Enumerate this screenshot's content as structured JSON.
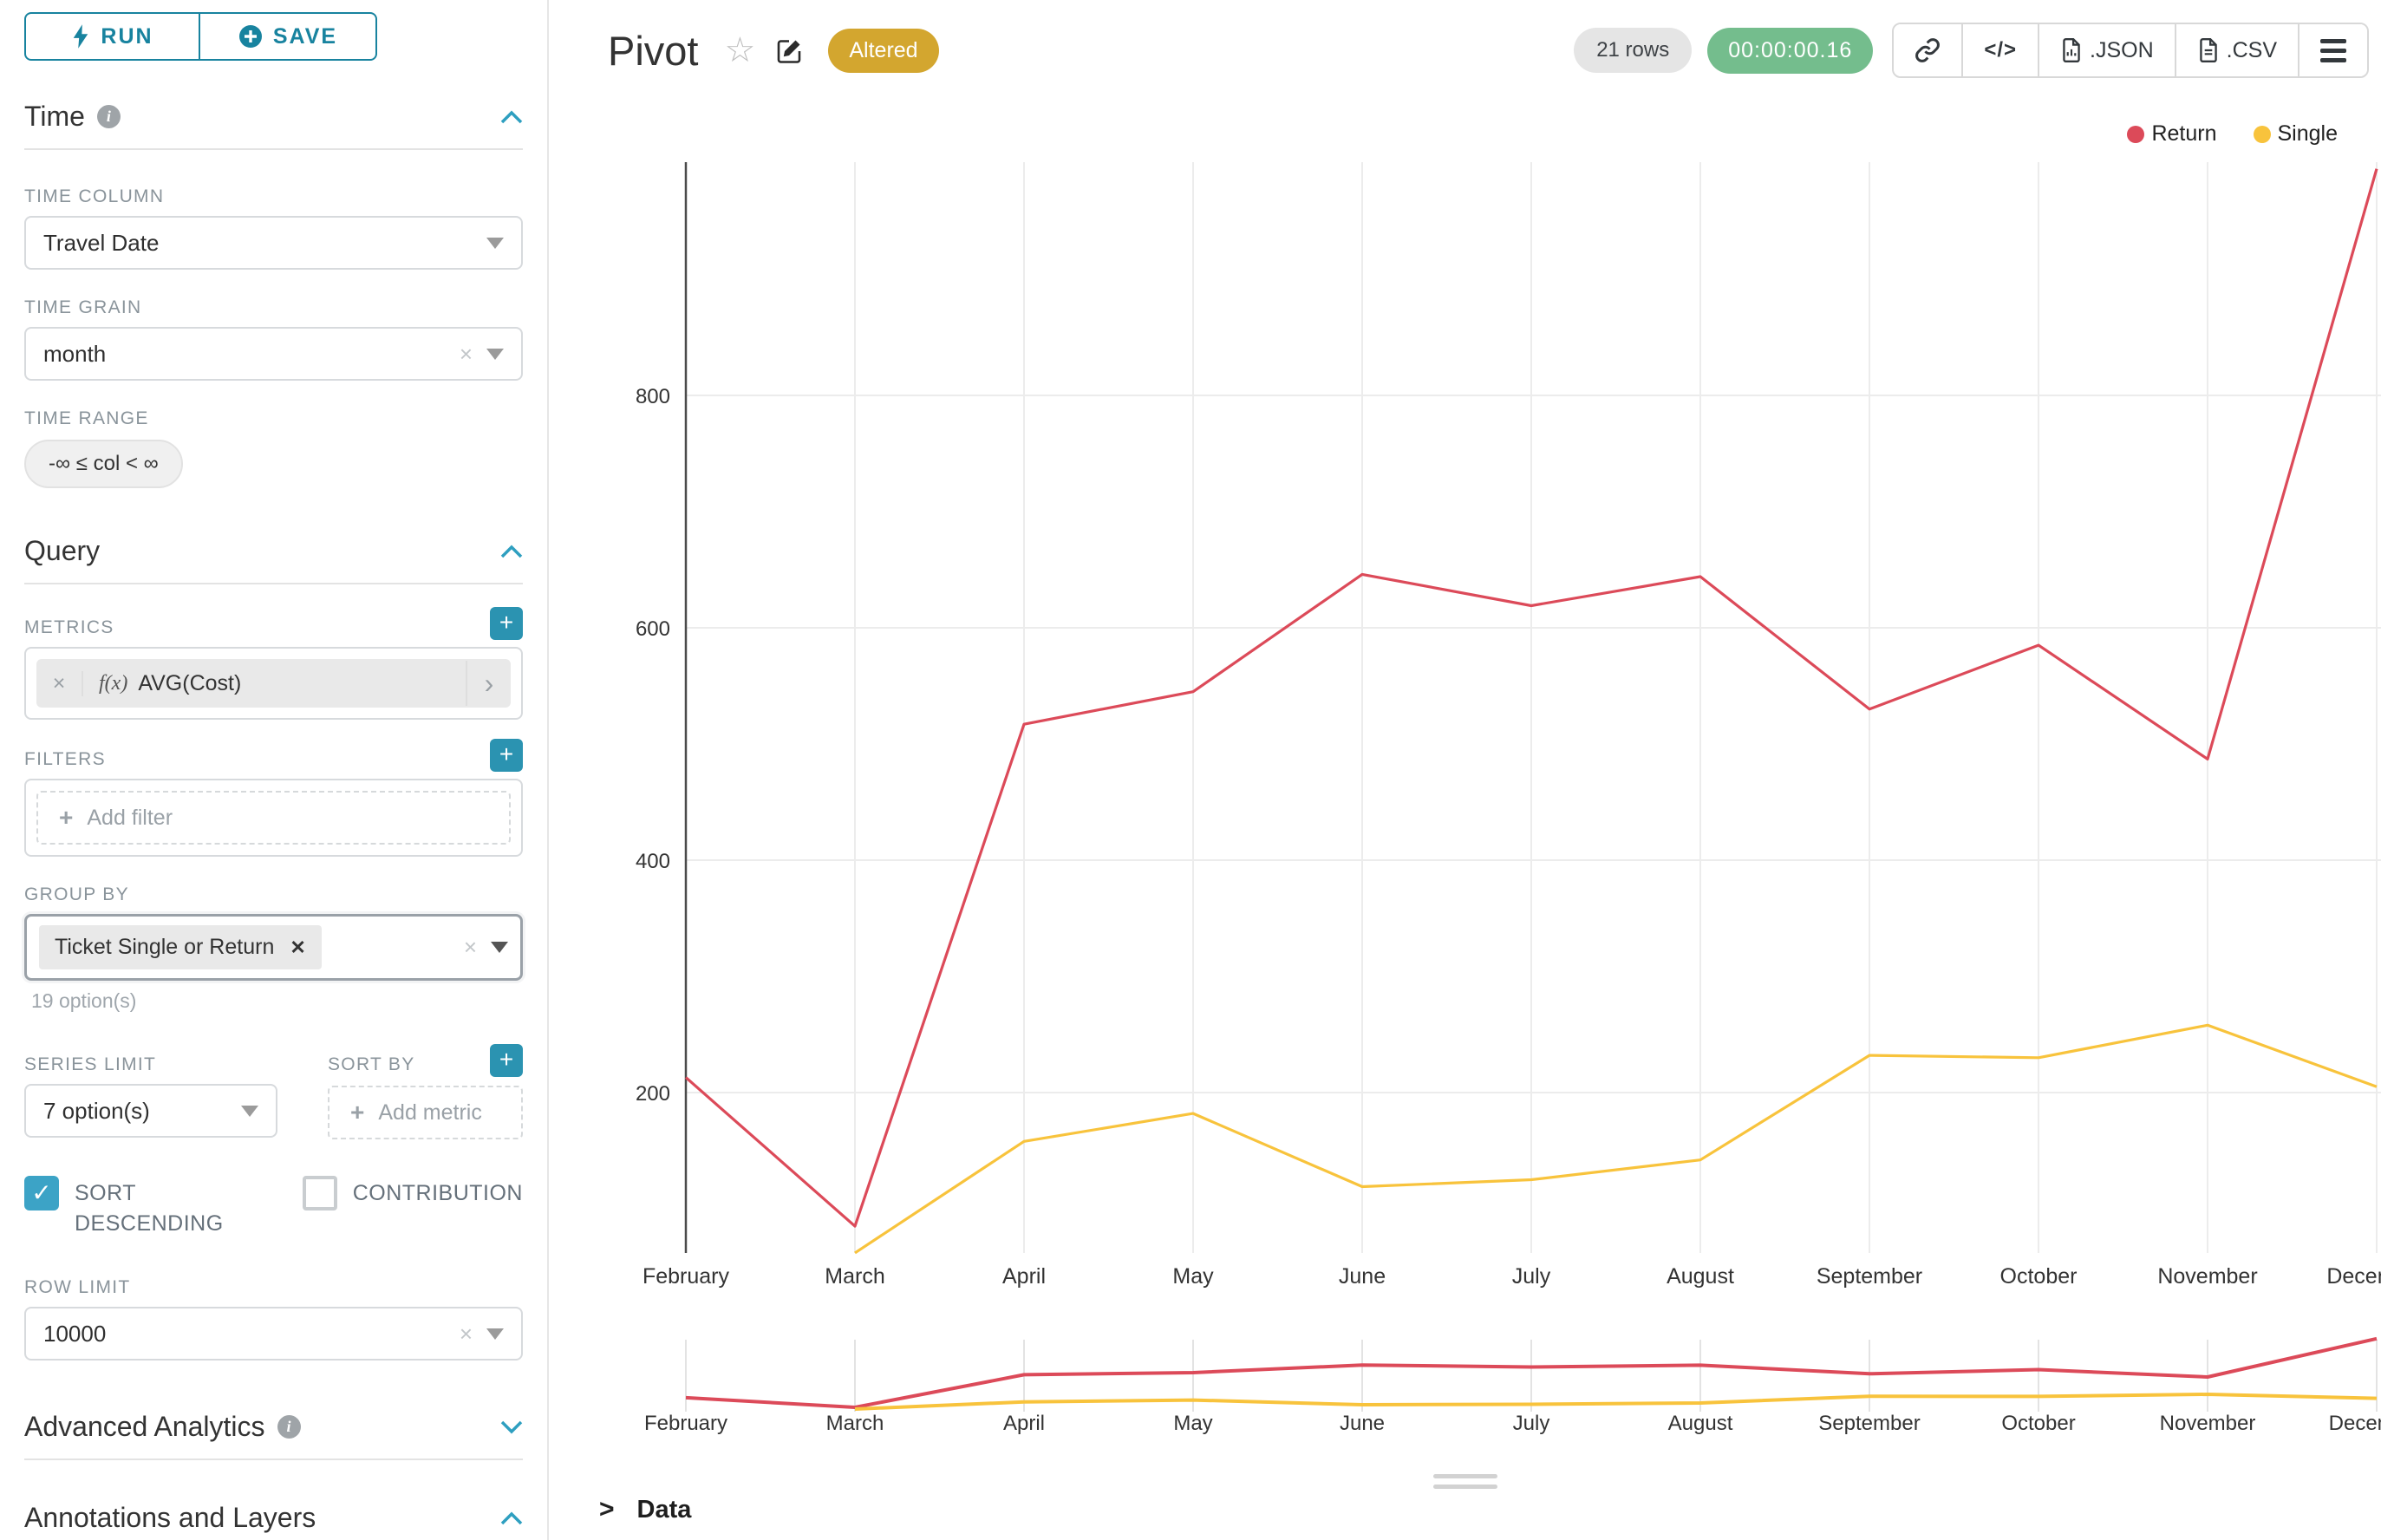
{
  "sidebar": {
    "run_label": "RUN",
    "save_label": "SAVE",
    "time": {
      "title": "Time",
      "time_column_label": "TIME COLUMN",
      "time_column_value": "Travel Date",
      "time_grain_label": "TIME GRAIN",
      "time_grain_value": "month",
      "time_range_label": "TIME RANGE",
      "time_range_value": "-∞ ≤ col < ∞"
    },
    "query": {
      "title": "Query",
      "metrics_label": "METRICS",
      "metric_fx": "f(x)",
      "metric_value": "AVG(Cost)",
      "filters_label": "FILTERS",
      "add_filter_label": "Add filter",
      "group_by_label": "GROUP BY",
      "group_by_tag": "Ticket Single or Return",
      "options_hint": "19 option(s)",
      "series_limit_label": "SERIES LIMIT",
      "series_limit_value": "7 option(s)",
      "sort_by_label": "SORT BY",
      "add_metric_label": "Add metric",
      "sort_descending_label": "SORT DESCENDING",
      "contribution_label": "CONTRIBUTION",
      "row_limit_label": "ROW LIMIT",
      "row_limit_value": "10000"
    },
    "advanced_analytics_title": "Advanced Analytics",
    "annotations_title": "Annotations and Layers"
  },
  "header": {
    "title": "Pivot",
    "altered_badge": "Altered",
    "rows_badge": "21 rows",
    "timer_badge": "00:00:00.16",
    "json_label": ".JSON",
    "csv_label": ".CSV",
    "code_icon_label": "</>"
  },
  "data_panel": {
    "title": "Data"
  },
  "colors": {
    "accent_teal": "#18839F",
    "altered_badge": "#D3A62F",
    "timer_badge": "#74BD8D",
    "checkbox_teal": "#3CA3C6",
    "return_line": "#DC4A59",
    "single_line": "#F8C33C",
    "gridline": "#ECECEC"
  },
  "chart_data": {
    "type": "line",
    "title": "Pivot",
    "categories": [
      "February",
      "March",
      "April",
      "May",
      "June",
      "July",
      "August",
      "September",
      "October",
      "November",
      "December"
    ],
    "series": [
      {
        "name": "Return",
        "color": "#DC4A59",
        "values": [
          213,
          85,
          517,
          545,
          646,
          619,
          644,
          530,
          585,
          487,
          995
        ]
      },
      {
        "name": "Single",
        "color": "#F8C33C",
        "values": [
          null,
          62,
          158,
          182,
          119,
          125,
          142,
          232,
          230,
          258,
          205
        ]
      }
    ],
    "xlabel": "",
    "ylabel": "",
    "yticks": [
      200,
      400,
      600,
      800
    ],
    "ylim": [
      60,
      1000
    ],
    "grid": true,
    "legend_position": "top-right",
    "has_range_selector_minichart": true
  }
}
